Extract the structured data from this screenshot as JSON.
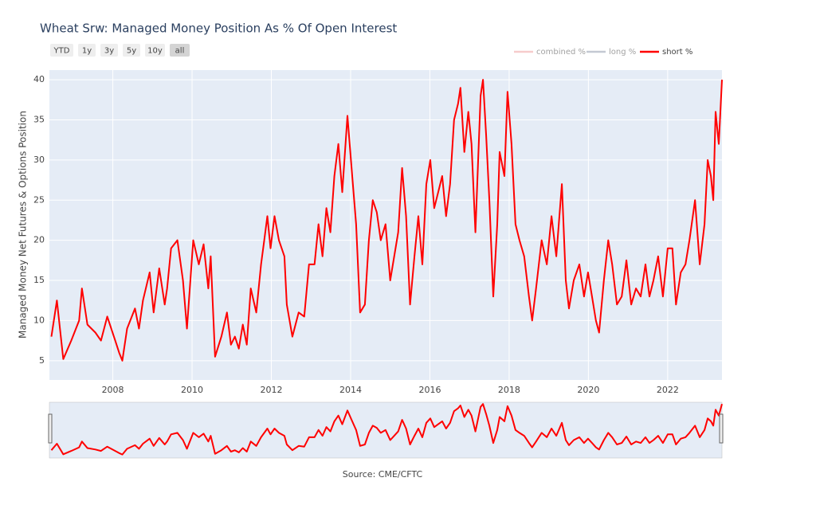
{
  "chart_data": {
    "type": "line",
    "title": "Wheat Srw: Managed Money Position As % Of Open Interest",
    "y_label": "Managed Money Net Futures & Options Position",
    "source": "Source: CME/CFTC",
    "range_buttons": [
      "YTD",
      "1y",
      "3y",
      "5y",
      "10y",
      "all"
    ],
    "range_button_active": 5,
    "range_slider": true,
    "grid": true,
    "legend": "top-right",
    "xlim": [
      2006.4,
      2023.37
    ],
    "xticks": [
      2008,
      2010,
      2012,
      2014,
      2016,
      2018,
      2020,
      2022
    ],
    "ylim": [
      2.6,
      41.2
    ],
    "yticks": [
      5,
      10,
      15,
      20,
      25,
      30,
      35,
      40
    ],
    "x": [
      2006.45,
      2006.59,
      2006.75,
      2006.95,
      2007.15,
      2007.22,
      2007.36,
      2007.56,
      2007.7,
      2007.86,
      2008.06,
      2008.16,
      2008.24,
      2008.36,
      2008.56,
      2008.66,
      2008.76,
      2008.93,
      2009.03,
      2009.17,
      2009.31,
      2009.37,
      2009.47,
      2009.63,
      2009.77,
      2009.87,
      2010.03,
      2010.17,
      2010.29,
      2010.41,
      2010.47,
      2010.58,
      2010.74,
      2010.88,
      2010.98,
      2011.08,
      2011.18,
      2011.28,
      2011.38,
      2011.48,
      2011.62,
      2011.74,
      2011.82,
      2011.9,
      2011.98,
      2012.08,
      2012.19,
      2012.33,
      2012.39,
      2012.53,
      2012.69,
      2012.83,
      2012.95,
      2013.09,
      2013.19,
      2013.29,
      2013.39,
      2013.49,
      2013.59,
      2013.69,
      2013.79,
      2013.92,
      2014.04,
      2014.14,
      2014.24,
      2014.36,
      2014.46,
      2014.56,
      2014.66,
      2014.76,
      2014.88,
      2015.0,
      2015.1,
      2015.2,
      2015.3,
      2015.4,
      2015.5,
      2015.61,
      2015.71,
      2015.81,
      2015.91,
      2016.01,
      2016.11,
      2016.21,
      2016.31,
      2016.41,
      2016.51,
      2016.61,
      2016.71,
      2016.77,
      2016.87,
      2016.97,
      2017.05,
      2017.15,
      2017.28,
      2017.34,
      2017.42,
      2017.5,
      2017.6,
      2017.7,
      2017.76,
      2017.88,
      2017.96,
      2018.06,
      2018.16,
      2018.26,
      2018.38,
      2018.5,
      2018.58,
      2018.68,
      2018.82,
      2018.95,
      2019.07,
      2019.19,
      2019.33,
      2019.43,
      2019.51,
      2019.63,
      2019.77,
      2019.89,
      2019.99,
      2020.09,
      2020.19,
      2020.27,
      2020.39,
      2020.5,
      2020.6,
      2020.72,
      2020.84,
      2020.96,
      2021.08,
      2021.2,
      2021.32,
      2021.44,
      2021.54,
      2021.64,
      2021.76,
      2021.88,
      2022.0,
      2022.12,
      2022.21,
      2022.33,
      2022.45,
      2022.55,
      2022.69,
      2022.81,
      2022.93,
      2023.01,
      2023.09,
      2023.15,
      2023.21,
      2023.29,
      2023.37
    ],
    "series": [
      {
        "name": "combined %",
        "color": "#ef9a9a",
        "visible": false
      },
      {
        "name": "long %",
        "color": "#8a94a6",
        "visible": false
      },
      {
        "name": "short %",
        "color": "#ff0000",
        "visible": true,
        "values": [
          8,
          12.5,
          5.2,
          7.5,
          10,
          14,
          9.5,
          8.5,
          7.5,
          10.5,
          7.5,
          6,
          5,
          9,
          11.5,
          9,
          12.5,
          16,
          11,
          16.5,
          12,
          14,
          19,
          20,
          15,
          9,
          20,
          17,
          19.5,
          14,
          18,
          5.5,
          8,
          11,
          7,
          8,
          6.5,
          9.5,
          7,
          14,
          11,
          17,
          20,
          23,
          19,
          23,
          20,
          18,
          12,
          8,
          11,
          10.5,
          17,
          17,
          22,
          18,
          24,
          21,
          28,
          32,
          26,
          35.5,
          28,
          22,
          11,
          12,
          20,
          25,
          23.5,
          20,
          22,
          15,
          18,
          21,
          29,
          23,
          12,
          18,
          23,
          17,
          27,
          30,
          24,
          26,
          28,
          23,
          27,
          35,
          37,
          39,
          31,
          36,
          32,
          21,
          38,
          40,
          33,
          25,
          13,
          22,
          31,
          28,
          38.5,
          32,
          22,
          20,
          18,
          13,
          10,
          14,
          20,
          17,
          23,
          18,
          27,
          15,
          11.5,
          15,
          17,
          13,
          16,
          13,
          10,
          8.5,
          15,
          20,
          17,
          12,
          13,
          17.5,
          12,
          14,
          13,
          17,
          13,
          15,
          18,
          13,
          19,
          19,
          12,
          16,
          17,
          20,
          25,
          17,
          22,
          30,
          28,
          25,
          36,
          32,
          40
        ]
      }
    ]
  }
}
